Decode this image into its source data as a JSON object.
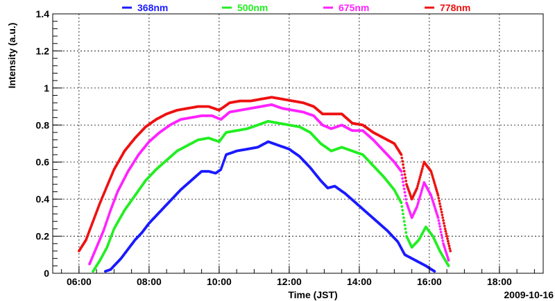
{
  "chart_data": {
    "type": "scatter",
    "xlabel": "Time (JST)",
    "ylabel": "Intensity (a.u.)",
    "date_label": "2009-10-16",
    "xlim": [
      5.25,
      19.25
    ],
    "ylim": [
      0,
      1.4
    ],
    "x_ticks": [
      6,
      8,
      10,
      12,
      14,
      16,
      18
    ],
    "x_tick_labels": [
      "06:00",
      "08:00",
      "10:00",
      "12:00",
      "14:00",
      "16:00",
      "18:00"
    ],
    "y_ticks": [
      0,
      0.2,
      0.4,
      0.6,
      0.8,
      1,
      1.2,
      1.4
    ],
    "y_tick_labels": [
      "0",
      "0.2",
      "0.4",
      "0.6",
      "0.8",
      "1",
      "1.2",
      "1.4"
    ],
    "grid": true,
    "legend_position": "top",
    "series": [
      {
        "name": "368nm",
        "color": "#1a1aff",
        "points": [
          [
            6.75,
            0.01
          ],
          [
            6.9,
            0.02
          ],
          [
            7.0,
            0.04
          ],
          [
            7.2,
            0.08
          ],
          [
            7.4,
            0.13
          ],
          [
            7.6,
            0.18
          ],
          [
            7.8,
            0.22
          ],
          [
            8.0,
            0.27
          ],
          [
            8.3,
            0.33
          ],
          [
            8.6,
            0.39
          ],
          [
            8.9,
            0.45
          ],
          [
            9.2,
            0.5
          ],
          [
            9.5,
            0.55
          ],
          [
            9.7,
            0.55
          ],
          [
            9.9,
            0.54
          ],
          [
            10.05,
            0.56
          ],
          [
            10.2,
            0.64
          ],
          [
            10.5,
            0.66
          ],
          [
            10.8,
            0.67
          ],
          [
            11.1,
            0.68
          ],
          [
            11.4,
            0.71
          ],
          [
            11.7,
            0.69
          ],
          [
            12.0,
            0.67
          ],
          [
            12.3,
            0.63
          ],
          [
            12.6,
            0.57
          ],
          [
            12.9,
            0.5
          ],
          [
            13.1,
            0.46
          ],
          [
            13.3,
            0.47
          ],
          [
            13.6,
            0.43
          ],
          [
            13.9,
            0.38
          ],
          [
            14.2,
            0.33
          ],
          [
            14.5,
            0.28
          ],
          [
            14.8,
            0.23
          ],
          [
            15.1,
            0.17
          ],
          [
            15.3,
            0.1
          ],
          [
            15.6,
            0.07
          ],
          [
            15.9,
            0.04
          ],
          [
            16.15,
            0.01
          ]
        ]
      },
      {
        "name": "500nm",
        "color": "#22ee22",
        "points": [
          [
            6.4,
            0.01
          ],
          [
            6.6,
            0.07
          ],
          [
            6.8,
            0.14
          ],
          [
            7.0,
            0.24
          ],
          [
            7.3,
            0.34
          ],
          [
            7.6,
            0.42
          ],
          [
            7.9,
            0.5
          ],
          [
            8.2,
            0.56
          ],
          [
            8.5,
            0.61
          ],
          [
            8.8,
            0.66
          ],
          [
            9.1,
            0.69
          ],
          [
            9.4,
            0.72
          ],
          [
            9.7,
            0.73
          ],
          [
            10.0,
            0.71
          ],
          [
            10.2,
            0.76
          ],
          [
            10.5,
            0.77
          ],
          [
            10.8,
            0.78
          ],
          [
            11.1,
            0.8
          ],
          [
            11.4,
            0.82
          ],
          [
            11.7,
            0.81
          ],
          [
            12.0,
            0.8
          ],
          [
            12.3,
            0.79
          ],
          [
            12.6,
            0.76
          ],
          [
            12.9,
            0.7
          ],
          [
            13.2,
            0.66
          ],
          [
            13.5,
            0.68
          ],
          [
            13.8,
            0.66
          ],
          [
            14.1,
            0.64
          ],
          [
            14.4,
            0.58
          ],
          [
            14.7,
            0.52
          ],
          [
            15.0,
            0.45
          ],
          [
            15.2,
            0.38
          ],
          [
            15.35,
            0.2
          ],
          [
            15.5,
            0.14
          ],
          [
            15.7,
            0.18
          ],
          [
            15.9,
            0.25
          ],
          [
            16.1,
            0.2
          ],
          [
            16.3,
            0.12
          ],
          [
            16.55,
            0.04
          ]
        ]
      },
      {
        "name": "675nm",
        "color": "#ff22ff",
        "points": [
          [
            6.3,
            0.05
          ],
          [
            6.5,
            0.14
          ],
          [
            6.7,
            0.23
          ],
          [
            6.9,
            0.34
          ],
          [
            7.1,
            0.44
          ],
          [
            7.4,
            0.55
          ],
          [
            7.7,
            0.64
          ],
          [
            8.0,
            0.71
          ],
          [
            8.3,
            0.76
          ],
          [
            8.6,
            0.8
          ],
          [
            8.9,
            0.83
          ],
          [
            9.2,
            0.84
          ],
          [
            9.5,
            0.85
          ],
          [
            9.8,
            0.85
          ],
          [
            10.05,
            0.83
          ],
          [
            10.3,
            0.87
          ],
          [
            10.6,
            0.88
          ],
          [
            10.9,
            0.89
          ],
          [
            11.2,
            0.9
          ],
          [
            11.5,
            0.91
          ],
          [
            11.8,
            0.89
          ],
          [
            12.1,
            0.88
          ],
          [
            12.4,
            0.87
          ],
          [
            12.7,
            0.85
          ],
          [
            12.95,
            0.8
          ],
          [
            13.2,
            0.78
          ],
          [
            13.5,
            0.8
          ],
          [
            13.8,
            0.77
          ],
          [
            14.1,
            0.77
          ],
          [
            14.4,
            0.72
          ],
          [
            14.7,
            0.66
          ],
          [
            15.0,
            0.6
          ],
          [
            15.2,
            0.55
          ],
          [
            15.35,
            0.38
          ],
          [
            15.5,
            0.3
          ],
          [
            15.65,
            0.36
          ],
          [
            15.85,
            0.49
          ],
          [
            16.05,
            0.42
          ],
          [
            16.25,
            0.3
          ],
          [
            16.4,
            0.16
          ],
          [
            16.55,
            0.07
          ]
        ]
      },
      {
        "name": "778nm",
        "color": "#ee1111",
        "points": [
          [
            6.0,
            0.12
          ],
          [
            6.2,
            0.18
          ],
          [
            6.4,
            0.28
          ],
          [
            6.6,
            0.38
          ],
          [
            6.8,
            0.47
          ],
          [
            7.0,
            0.56
          ],
          [
            7.3,
            0.66
          ],
          [
            7.6,
            0.73
          ],
          [
            7.9,
            0.79
          ],
          [
            8.2,
            0.83
          ],
          [
            8.5,
            0.86
          ],
          [
            8.8,
            0.88
          ],
          [
            9.1,
            0.89
          ],
          [
            9.4,
            0.9
          ],
          [
            9.7,
            0.9
          ],
          [
            10.0,
            0.88
          ],
          [
            10.3,
            0.92
          ],
          [
            10.6,
            0.93
          ],
          [
            10.9,
            0.93
          ],
          [
            11.2,
            0.94
          ],
          [
            11.5,
            0.95
          ],
          [
            11.8,
            0.94
          ],
          [
            12.1,
            0.93
          ],
          [
            12.4,
            0.92
          ],
          [
            12.7,
            0.9
          ],
          [
            12.95,
            0.86
          ],
          [
            13.2,
            0.86
          ],
          [
            13.5,
            0.86
          ],
          [
            13.8,
            0.81
          ],
          [
            14.1,
            0.8
          ],
          [
            14.4,
            0.76
          ],
          [
            14.7,
            0.73
          ],
          [
            15.0,
            0.7
          ],
          [
            15.2,
            0.64
          ],
          [
            15.35,
            0.48
          ],
          [
            15.5,
            0.4
          ],
          [
            15.65,
            0.46
          ],
          [
            15.85,
            0.6
          ],
          [
            16.05,
            0.55
          ],
          [
            16.25,
            0.42
          ],
          [
            16.45,
            0.24
          ],
          [
            16.6,
            0.12
          ]
        ]
      }
    ]
  }
}
